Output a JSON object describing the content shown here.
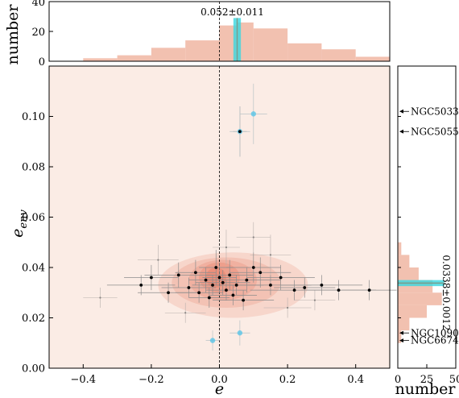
{
  "chart_data": {
    "type": "scatter",
    "main": {
      "xlabel": "e",
      "ylabel_main": "e",
      "ylabel_sub": "env",
      "xlim": [
        -0.5,
        0.5
      ],
      "ylim": [
        0.0,
        0.12
      ],
      "xticks": [
        -0.4,
        -0.2,
        0.0,
        0.2,
        0.4
      ],
      "xtick_labels": [
        "−0.4",
        "−0.2",
        "0.0",
        "0.2",
        "0.4"
      ],
      "yticks": [
        0.0,
        0.02,
        0.04,
        0.06,
        0.08,
        0.1
      ],
      "ytick_labels": [
        "0.00",
        "0.02",
        "0.04",
        "0.06",
        "0.08",
        "0.10"
      ],
      "vline_x": 0.0,
      "points": [
        {
          "x": 0.0,
          "y": 0.036,
          "xerr": 0.05,
          "yerr": 0.006
        },
        {
          "x": 0.01,
          "y": 0.034,
          "xerr": 0.08,
          "yerr": 0.005
        },
        {
          "x": -0.02,
          "y": 0.033,
          "xerr": 0.06,
          "yerr": 0.004
        },
        {
          "x": 0.03,
          "y": 0.037,
          "xerr": 0.07,
          "yerr": 0.006
        },
        {
          "x": -0.04,
          "y": 0.035,
          "xerr": 0.05,
          "yerr": 0.005
        },
        {
          "x": 0.02,
          "y": 0.031,
          "xerr": 0.06,
          "yerr": 0.004
        },
        {
          "x": -0.01,
          "y": 0.04,
          "xerr": 0.05,
          "yerr": 0.007
        },
        {
          "x": 0.05,
          "y": 0.033,
          "xerr": 0.08,
          "yerr": 0.004
        },
        {
          "x": -0.06,
          "y": 0.03,
          "xerr": 0.07,
          "yerr": 0.004
        },
        {
          "x": 0.08,
          "y": 0.035,
          "xerr": 0.1,
          "yerr": 0.005
        },
        {
          "x": -0.09,
          "y": 0.032,
          "xerr": 0.08,
          "yerr": 0.004
        },
        {
          "x": 0.12,
          "y": 0.038,
          "xerr": 0.09,
          "yerr": 0.006
        },
        {
          "x": -0.12,
          "y": 0.037,
          "xerr": 0.1,
          "yerr": 0.005
        },
        {
          "x": 0.15,
          "y": 0.033,
          "xerr": 0.12,
          "yerr": 0.004
        },
        {
          "x": -0.15,
          "y": 0.03,
          "xerr": 0.09,
          "yerr": 0.004
        },
        {
          "x": 0.18,
          "y": 0.036,
          "xerr": 0.1,
          "yerr": 0.005
        },
        {
          "x": -0.2,
          "y": 0.036,
          "xerr": 0.08,
          "yerr": 0.005
        },
        {
          "x": -0.23,
          "y": 0.033,
          "xerr": 0.1,
          "yerr": 0.004
        },
        {
          "x": 0.22,
          "y": 0.031,
          "xerr": 0.13,
          "yerr": 0.004
        },
        {
          "x": 0.25,
          "y": 0.032,
          "xerr": 0.09,
          "yerr": 0.004
        },
        {
          "x": 0.3,
          "y": 0.033,
          "xerr": 0.12,
          "yerr": 0.004
        },
        {
          "x": 0.35,
          "y": 0.031,
          "xerr": 0.11,
          "yerr": 0.004
        },
        {
          "x": 0.44,
          "y": 0.031,
          "xerr": 0.08,
          "yerr": 0.004
        },
        {
          "x": -0.03,
          "y": 0.028,
          "xerr": 0.06,
          "yerr": 0.004
        },
        {
          "x": 0.04,
          "y": 0.029,
          "xerr": 0.07,
          "yerr": 0.004
        },
        {
          "x": 0.06,
          "y": 0.094,
          "xerr": 0.02,
          "yerr": 0.01
        },
        {
          "x": 0.1,
          "y": 0.04,
          "xerr": 0.08,
          "yerr": 0.006
        },
        {
          "x": -0.07,
          "y": 0.038,
          "xerr": 0.06,
          "yerr": 0.005
        },
        {
          "x": 0.07,
          "y": 0.027,
          "xerr": 0.09,
          "yerr": 0.004
        }
      ],
      "highlight_points": [
        {
          "x": 0.1,
          "y": 0.101,
          "xerr": 0.04,
          "yerr": 0.012
        },
        {
          "x": 0.06,
          "y": 0.094,
          "xerr": 0.03,
          "yerr": 0.01
        },
        {
          "x": 0.06,
          "y": 0.014,
          "xerr": 0.03,
          "yerr": 0.005
        },
        {
          "x": -0.02,
          "y": 0.011,
          "xerr": 0.02,
          "yerr": 0.004
        }
      ],
      "faint_points": [
        {
          "x": -0.35,
          "y": 0.028,
          "xerr": 0.05,
          "yerr": 0.004
        },
        {
          "x": 0.15,
          "y": 0.045,
          "xerr": 0.06,
          "yerr": 0.008
        },
        {
          "x": 0.1,
          "y": 0.052,
          "xerr": 0.05,
          "yerr": 0.006
        },
        {
          "x": 0.02,
          "y": 0.048,
          "xerr": 0.04,
          "yerr": 0.007
        },
        {
          "x": -0.1,
          "y": 0.022,
          "xerr": 0.06,
          "yerr": 0.004
        },
        {
          "x": 0.2,
          "y": 0.024,
          "xerr": 0.07,
          "yerr": 0.004
        },
        {
          "x": 0.28,
          "y": 0.027,
          "xerr": 0.06,
          "yerr": 0.004
        },
        {
          "x": -0.18,
          "y": 0.043,
          "xerr": 0.06,
          "yerr": 0.006
        }
      ]
    },
    "top_hist": {
      "ylabel": "number",
      "ylim": [
        0,
        40
      ],
      "yticks": [
        0,
        20,
        40
      ],
      "bins": [
        -0.4,
        -0.3,
        -0.2,
        -0.1,
        0.0,
        0.05,
        0.1,
        0.2,
        0.3,
        0.4,
        0.5
      ],
      "counts": [
        2,
        4,
        9,
        14,
        24,
        26,
        22,
        12,
        8,
        3
      ],
      "estimate": 0.052,
      "estimate_err": 0.011,
      "annotation": "0.052±0.011"
    },
    "right_hist": {
      "xlabel": "number",
      "xlim": [
        0,
        50
      ],
      "xticks": [
        0,
        25,
        50
      ],
      "bins": [
        0.01,
        0.015,
        0.02,
        0.025,
        0.03,
        0.035,
        0.04,
        0.045,
        0.05
      ],
      "counts": [
        3,
        10,
        25,
        38,
        30,
        18,
        10,
        3
      ],
      "estimate": 0.0338,
      "estimate_err": 0.0012,
      "annotation": "0.0338±0.0012"
    },
    "labels": [
      {
        "text": "NGC5033",
        "y": 0.102
      },
      {
        "text": "NGC5055",
        "y": 0.094
      },
      {
        "text": "NGC1090",
        "y": 0.014
      },
      {
        "text": "NGC6674",
        "y": 0.011
      }
    ]
  }
}
